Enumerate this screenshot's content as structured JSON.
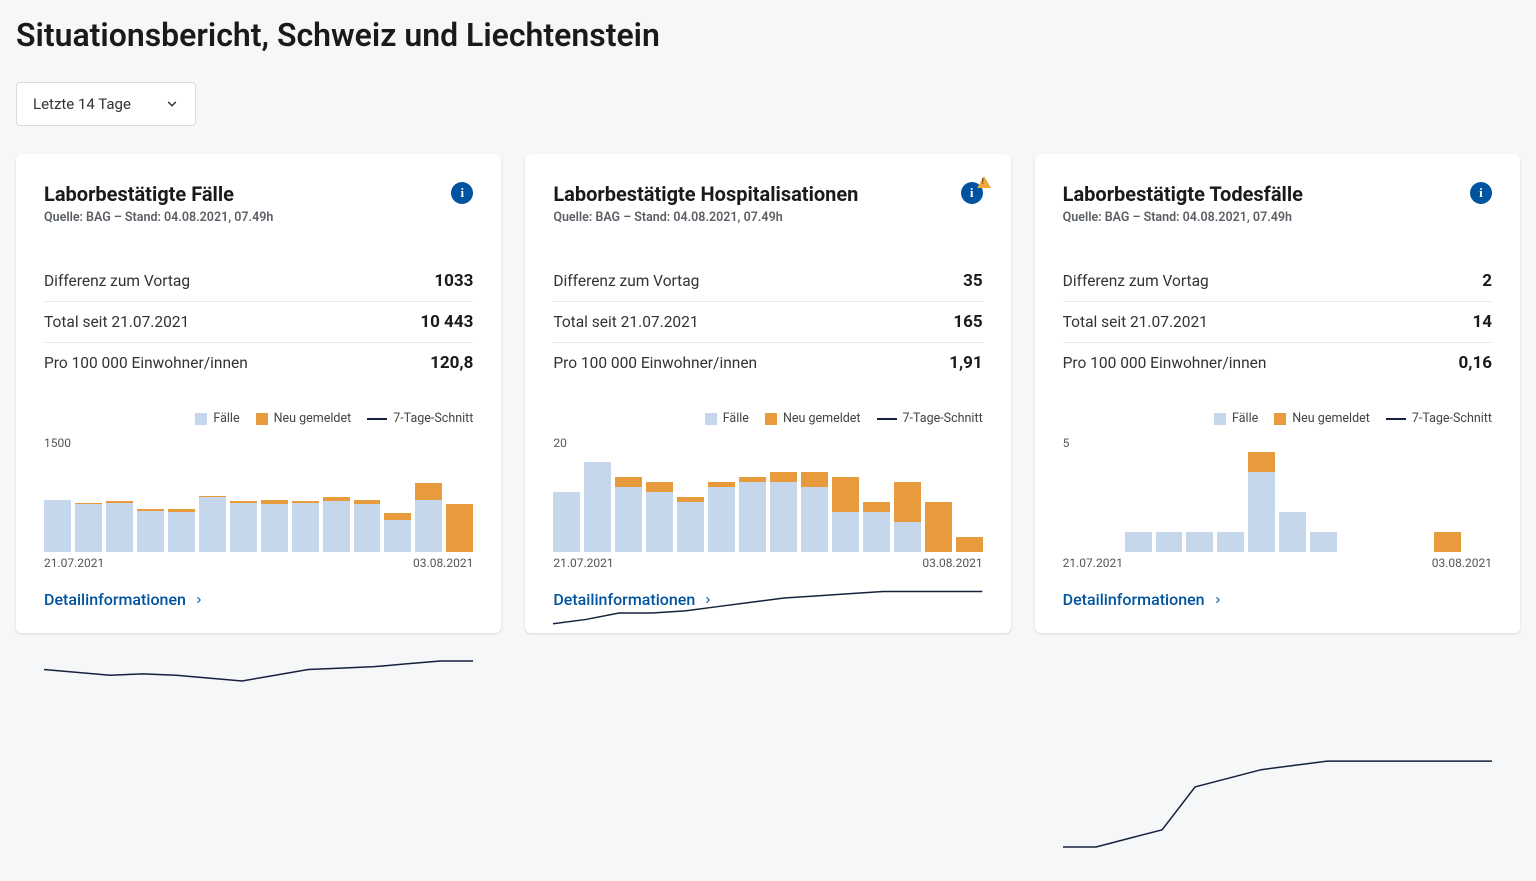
{
  "page": {
    "title": "Situationsbericht, Schweiz und Liechtenstein"
  },
  "dropdown": {
    "selected": "Letzte 14 Tage"
  },
  "colors": {
    "bar_light": "#c6d6eb",
    "bar_orange": "#e89b3c",
    "line": "#16213d",
    "info_bg": "#00539f",
    "link": "#00539f",
    "card_bg": "#ffffff",
    "page_bg": "#f5f7f9",
    "divider": "#e6e9ed"
  },
  "legend": {
    "series1": "Fälle",
    "series2": "Neu gemeldet",
    "series3": "7-Tage-Schnitt"
  },
  "stat_labels": {
    "diff": "Differenz zum Vortag",
    "total": "Total seit 21.07.2021",
    "per100k": "Pro 100 000 Einwohner/innen"
  },
  "detail_link_label": "Detailinformationen",
  "cards": [
    {
      "id": "cases",
      "title": "Laborbestätigte Fälle",
      "subtitle": "Quelle: BAG – Stand: 04.08.2021, 07.49h",
      "warn": false,
      "stats": {
        "diff": "1033",
        "total": "10 443",
        "per100k": "120,8"
      },
      "chart": {
        "ymax_label": "1500",
        "ymax": 1500,
        "x_start": "21.07.2021",
        "x_end": "03.08.2021",
        "bars": [
          {
            "v": 780,
            "new": 0
          },
          {
            "v": 720,
            "new": 20
          },
          {
            "v": 740,
            "new": 20
          },
          {
            "v": 620,
            "new": 20
          },
          {
            "v": 600,
            "new": 40
          },
          {
            "v": 820,
            "new": 20
          },
          {
            "v": 730,
            "new": 40
          },
          {
            "v": 720,
            "new": 60
          },
          {
            "v": 730,
            "new": 40
          },
          {
            "v": 760,
            "new": 60
          },
          {
            "v": 720,
            "new": 60
          },
          {
            "v": 480,
            "new": 100
          },
          {
            "v": 780,
            "new": 260
          },
          {
            "v": 0,
            "new": 720
          }
        ],
        "trend": [
          740,
          730,
          720,
          725,
          720,
          710,
          700,
          720,
          740,
          745,
          750,
          760,
          770,
          770
        ]
      }
    },
    {
      "id": "hosp",
      "title": "Laborbestätigte Hospitalisationen",
      "subtitle": "Quelle: BAG – Stand: 04.08.2021, 07.49h",
      "warn": true,
      "stats": {
        "diff": "35",
        "total": "165",
        "per100k": "1,91"
      },
      "chart": {
        "ymax_label": "20",
        "ymax": 20,
        "x_start": "21.07.2021",
        "x_end": "03.08.2021",
        "bars": [
          {
            "v": 12,
            "new": 0
          },
          {
            "v": 18,
            "new": 0
          },
          {
            "v": 13,
            "new": 2
          },
          {
            "v": 12,
            "new": 2
          },
          {
            "v": 10,
            "new": 1
          },
          {
            "v": 13,
            "new": 1
          },
          {
            "v": 14,
            "new": 1
          },
          {
            "v": 14,
            "new": 2
          },
          {
            "v": 13,
            "new": 3
          },
          {
            "v": 8,
            "new": 7
          },
          {
            "v": 8,
            "new": 2
          },
          {
            "v": 6,
            "new": 8
          },
          {
            "v": 0,
            "new": 10
          },
          {
            "v": 0,
            "new": 3
          }
        ],
        "trend": [
          12,
          12.2,
          12.5,
          12.5,
          12.6,
          12.8,
          13,
          13.2,
          13.3,
          13.4,
          13.5,
          13.5,
          13.5,
          13.5
        ]
      }
    },
    {
      "id": "deaths",
      "title": "Laborbestätigte Todesfälle",
      "subtitle": "Quelle: BAG – Stand: 04.08.2021, 07.49h",
      "warn": false,
      "stats": {
        "diff": "2",
        "total": "14",
        "per100k": "0,16"
      },
      "chart": {
        "ymax_label": "5",
        "ymax": 5,
        "x_start": "21.07.2021",
        "x_end": "03.08.2021",
        "bars": [
          {
            "v": 0,
            "new": 0
          },
          {
            "v": 0,
            "new": 0
          },
          {
            "v": 1,
            "new": 0
          },
          {
            "v": 1,
            "new": 0
          },
          {
            "v": 1,
            "new": 0
          },
          {
            "v": 1,
            "new": 0
          },
          {
            "v": 4,
            "new": 1
          },
          {
            "v": 2,
            "new": 0
          },
          {
            "v": 1,
            "new": 0
          },
          {
            "v": 0,
            "new": 0
          },
          {
            "v": 0,
            "new": 0
          },
          {
            "v": 0,
            "new": 0
          },
          {
            "v": 0,
            "new": 1
          },
          {
            "v": 0,
            "new": 0
          }
        ],
        "trend": [
          0.4,
          0.4,
          0.5,
          0.6,
          1.1,
          1.2,
          1.3,
          1.35,
          1.4,
          1.4,
          1.4,
          1.4,
          1.4,
          1.4
        ]
      }
    }
  ]
}
